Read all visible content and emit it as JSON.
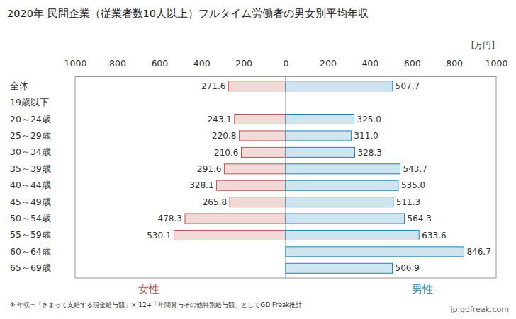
{
  "chart_data": {
    "type": "bar",
    "orientation": "horizontal",
    "title": "2020年 民間企業（従業者数10人以上）フルタイム労働者の男女別平均年収",
    "xlabel": "[万円]",
    "note": "※ 年収=「きまって支給する現金給与額」× 12+「年間賞与その他特別給与額」としてGD Freak推計",
    "source": "jp.gdfreak.com",
    "categories": [
      "全体",
      "19歳以下",
      "20～24歳",
      "25～29歳",
      "30～34歳",
      "35～39歳",
      "40～44歳",
      "45～49歳",
      "50～54歳",
      "55～59歳",
      "60～64歳",
      "65～69歳"
    ],
    "series": [
      {
        "name": "女性",
        "color": "#c0504d",
        "values": [
          271.6,
          null,
          243.1,
          220.8,
          210.6,
          291.6,
          328.1,
          265.8,
          478.3,
          530.1,
          null,
          null
        ],
        "value_labels": [
          "271.6",
          null,
          "243.1",
          "220.8",
          "210.6",
          "291.6",
          "328.1",
          "265.8",
          "478.3",
          "530.1",
          null,
          null
        ]
      },
      {
        "name": "男性",
        "color": "#1f86b0",
        "values": [
          507.7,
          null,
          325.0,
          311.0,
          328.3,
          543.7,
          535.0,
          511.3,
          564.3,
          633.6,
          846.7,
          506.9
        ],
        "value_labels": [
          "507.7",
          null,
          "325.0",
          "311.0",
          "328.3",
          "543.7",
          "535.0",
          "511.3",
          "564.3",
          "633.6",
          "846.7",
          "506.9"
        ]
      }
    ],
    "xlim": [
      0,
      1000
    ],
    "xticks": [
      0,
      200,
      400,
      600,
      800,
      1000
    ],
    "grid": false,
    "data_labels": true
  }
}
